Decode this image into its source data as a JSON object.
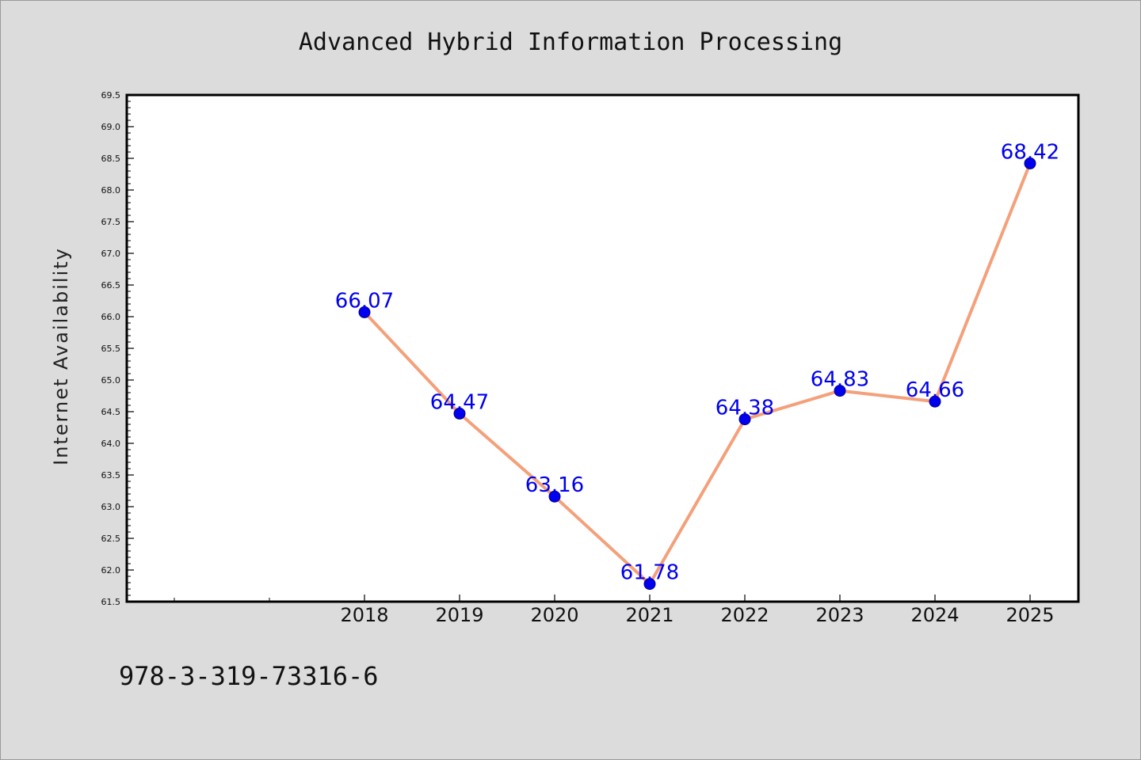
{
  "chart_data": {
    "type": "line",
    "title": "Advanced Hybrid Information Processing",
    "xlabel": "",
    "ylabel": "Internet Availability",
    "categories": [
      "2018",
      "2019",
      "2020",
      "2021",
      "2022",
      "2023",
      "2024",
      "2025"
    ],
    "series": [
      {
        "values": [
          66.07,
          64.47,
          63.16,
          61.78,
          64.38,
          64.83,
          64.66,
          68.42
        ],
        "labels": [
          "66.07",
          "64.47",
          "63.16",
          "61.78",
          "64.38",
          "64.83",
          "64.66",
          "68.42"
        ]
      }
    ],
    "ylim": [
      61.5,
      69.5
    ],
    "yticks": [
      "61.5",
      "62.0",
      "62.5",
      "63.0",
      "63.5",
      "64.0",
      "64.5",
      "65.0",
      "65.5",
      "66.0",
      "66.5",
      "67.0",
      "67.5",
      "68.0",
      "68.5",
      "69.0",
      "69.5"
    ],
    "grid": false,
    "colors": {
      "line": "#f4a07a",
      "marker": "#0000ee",
      "data_label": "#0000ee",
      "background": "#dcdcdc",
      "plot_background": "#ffffff"
    }
  },
  "footer": {
    "isbn": "978-3-319-73316-6"
  }
}
